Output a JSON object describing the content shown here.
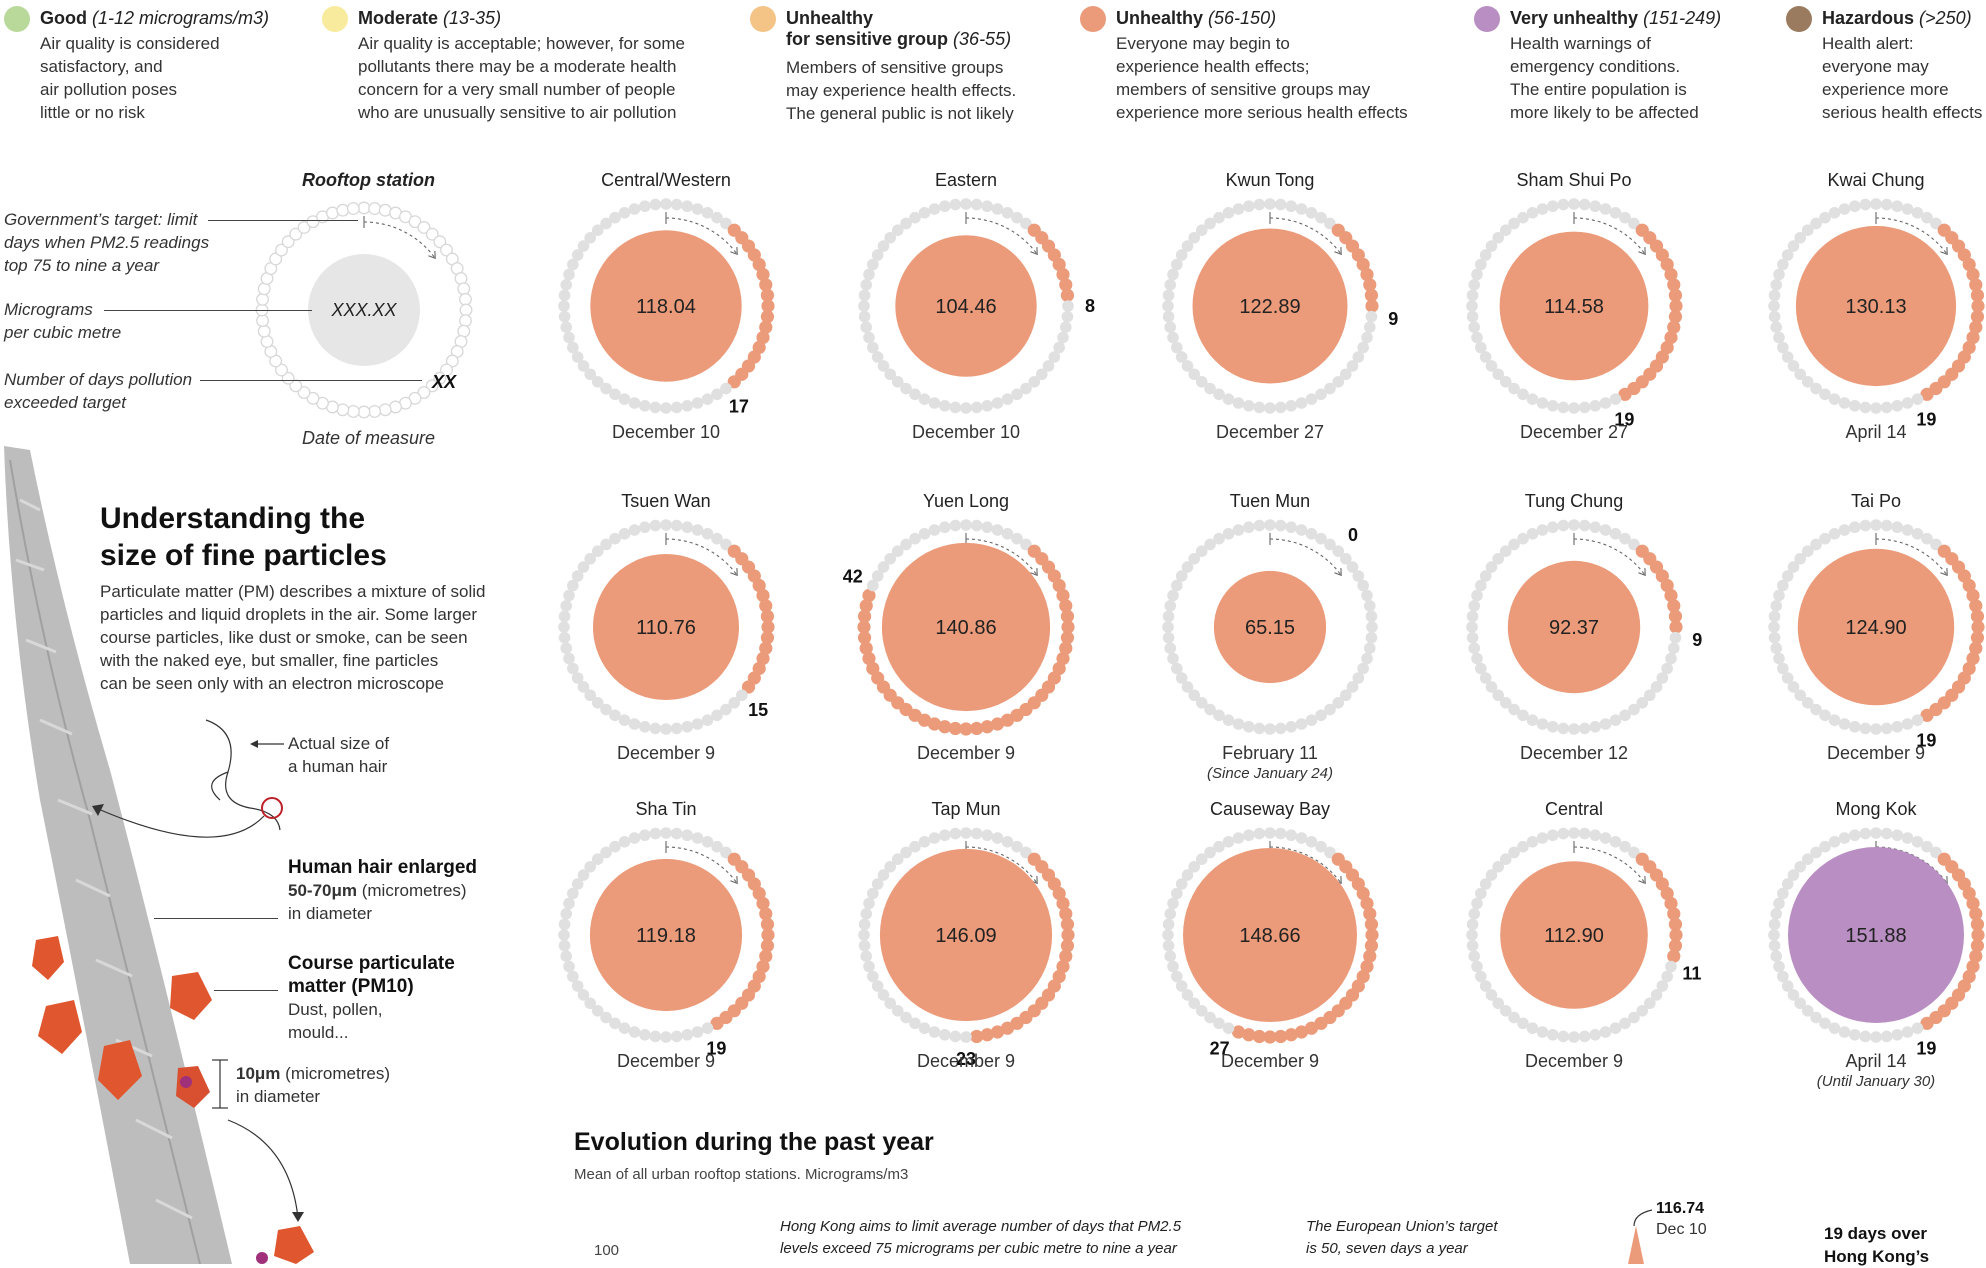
{
  "legend": [
    {
      "title": "Good",
      "range": "(1-12 micrograms/m3)",
      "color": "#b9d99a",
      "lines": [
        "Air quality is considered",
        "satisfactory, and",
        "air pollution poses",
        "little or no risk"
      ]
    },
    {
      "title": "Moderate",
      "range": "(13-35)",
      "color": "#f8eb9e",
      "lines": [
        "Air quality is acceptable; however, for some",
        "pollutants there may be a moderate health",
        "concern for a very small number of people",
        "who are unusually sensitive to air pollution"
      ]
    },
    {
      "title": "Unhealthy",
      "title2": "for sensitive group",
      "range": "(36-55)",
      "color": "#f4c386",
      "lines": [
        "Members of sensitive groups",
        "may experience health effects.",
        "The general public is not likely"
      ]
    },
    {
      "title": "Unhealthy",
      "range": "(56-150)",
      "color": "#eb9b7a",
      "lines": [
        "Everyone may begin to",
        "experience health effects;",
        "members of sensitive groups may",
        "experience more serious health effects"
      ]
    },
    {
      "title": "Very unhealthy",
      "range": "(151-249)",
      "color": "#b98ec2",
      "lines": [
        "Health warnings of",
        "emergency conditions.",
        "The entire population is",
        "more likely to be affected"
      ]
    },
    {
      "title": "Hazardous",
      "range": "(>250)",
      "color": "#9a7b5f",
      "lines": [
        "Health alert:",
        "everyone may",
        "experience more",
        "serious health effects"
      ]
    }
  ],
  "key": {
    "title": "Rooftop station",
    "value": "XXX.XX",
    "count": "XX",
    "date": "Date of measure",
    "label_target_lines": [
      "Government’s target: limit",
      "days when PM2.5 readings",
      "top 75 to nine a year"
    ],
    "label_micro_lines": [
      "Micrograms",
      "per cubic metre"
    ],
    "label_days_lines": [
      "Number of days pollution",
      "exceeded target"
    ]
  },
  "stations": [
    {
      "name": "Central/Western",
      "value": "118.04",
      "days": 17,
      "date": "December 10",
      "note": "",
      "color": "#eb9b7a"
    },
    {
      "name": "Eastern",
      "value": "104.46",
      "days": 8,
      "date": "December 10",
      "note": "",
      "color": "#eb9b7a"
    },
    {
      "name": "Kwun Tong",
      "value": "122.89",
      "days": 9,
      "date": "December 27",
      "note": "",
      "color": "#eb9b7a"
    },
    {
      "name": "Sham Shui Po",
      "value": "114.58",
      "days": 19,
      "date": "December 27",
      "note": "",
      "color": "#eb9b7a"
    },
    {
      "name": "Kwai Chung",
      "value": "130.13",
      "days": 19,
      "date": "April 14",
      "note": "",
      "color": "#eb9b7a"
    },
    {
      "name": "Tsuen Wan",
      "value": "110.76",
      "days": 15,
      "date": "December 9",
      "note": "",
      "color": "#eb9b7a"
    },
    {
      "name": "Yuen Long",
      "value": "140.86",
      "days": 42,
      "date": "December 9",
      "note": "",
      "color": "#eb9b7a"
    },
    {
      "name": "Tuen Mun",
      "value": "65.15",
      "days": 0,
      "date": "February 11",
      "note": "(Since January 24)",
      "color": "#eb9b7a"
    },
    {
      "name": "Tung Chung",
      "value": "92.37",
      "days": 9,
      "date": "December 12",
      "note": "",
      "color": "#eb9b7a"
    },
    {
      "name": "Tai Po",
      "value": "124.90",
      "days": 19,
      "date": "December 9",
      "note": "",
      "color": "#eb9b7a"
    },
    {
      "name": "Sha Tin",
      "value": "119.18",
      "days": 19,
      "date": "December 9",
      "note": "",
      "color": "#eb9b7a"
    },
    {
      "name": "Tap Mun",
      "value": "146.09",
      "days": 23,
      "date": "December 9",
      "note": "",
      "color": "#eb9b7a"
    },
    {
      "name": "Causeway Bay",
      "value": "148.66",
      "days": 27,
      "date": "December 9",
      "note": "",
      "color": "#eb9b7a"
    },
    {
      "name": "Central",
      "value": "112.90",
      "days": 11,
      "date": "December 9",
      "note": "",
      "color": "#eb9b7a"
    },
    {
      "name": "Mong Kok",
      "value": "151.88",
      "days": 19,
      "date": "April 14",
      "note": "(Until January 30)",
      "color": "#b98ec2"
    }
  ],
  "explainer": {
    "title_line1": "Understanding the",
    "title_line2": "size of fine particles",
    "body_lines": [
      "Particulate matter (PM) describes a mixture of solid",
      "particles and liquid droplets in the air. Some larger",
      "course particles, like dust or smoke, can be seen",
      "with the naked eye, but smaller, fine particles",
      "can be seen only with an electron microscope"
    ],
    "hair_actual_lines": [
      "Actual size of",
      "a human hair"
    ],
    "hair_enlarged_title": "Human hair enlarged",
    "hair_enlarged_size": "50-70μm",
    "hair_enlarged_unit": "(micrometres)",
    "hair_enlarged_tail": "in diameter",
    "pm10_title_lines": [
      "Course particulate",
      "matter (PM10)"
    ],
    "pm10_desc_lines": [
      "Dust, pollen,",
      "mould..."
    ],
    "pm10_size": "10μm",
    "pm10_unit": "(micrometres)",
    "pm10_tail": "in diameter"
  },
  "evolution": {
    "title": "Evolution during the past year",
    "subtitle": "Mean of all urban rooftop stations. Micrograms/m3",
    "tick_100": "100",
    "note_hk_lines": [
      "Hong Kong aims to limit average number of days that PM2.5",
      "levels exceed 75 micrograms per cubic metre to nine a year"
    ],
    "note_eu_lines": [
      "The European Union’s target",
      "is 50, seven days a year"
    ],
    "peak_value": "116.74",
    "peak_date": "Dec 10",
    "days_over_lines": [
      "19 days over",
      "Hong Kong’s"
    ]
  },
  "colors": {
    "dot_grey": "#e0e0e0",
    "dot_orange": "#eb9b7a",
    "key_circle": "#e6e6e6"
  }
}
